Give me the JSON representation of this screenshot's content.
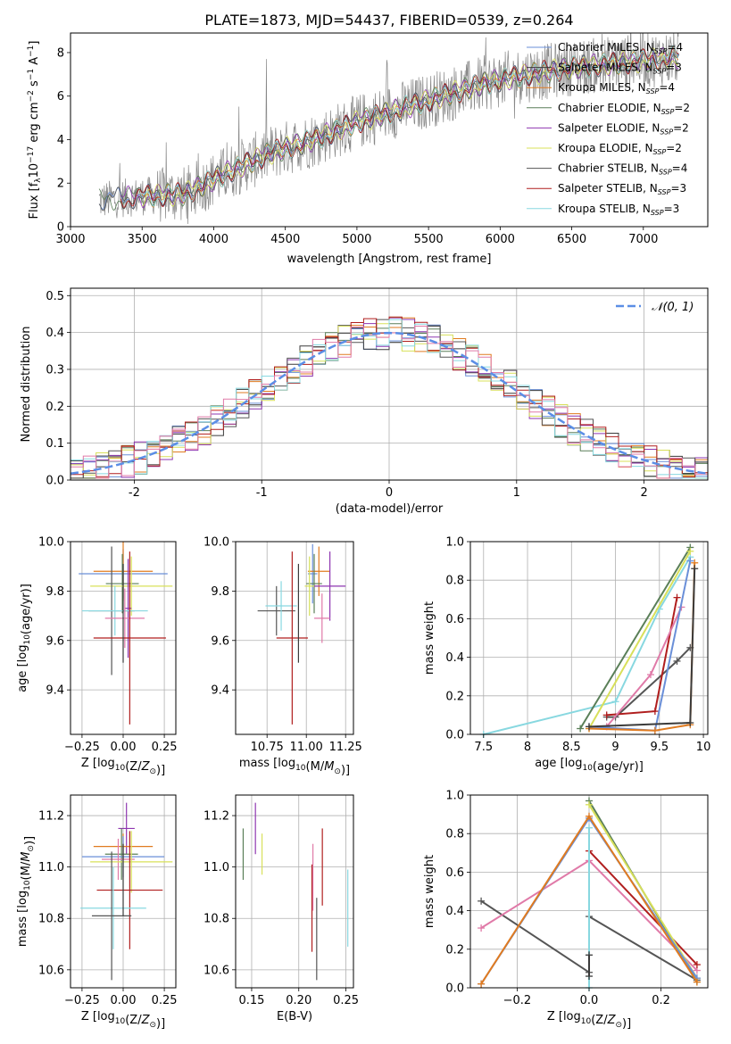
{
  "colors": {
    "Chabrier MILES": "#6a8fd8",
    "Salpeter MILES": "#3b3b3b",
    "Kroupa MILES": "#e07b20",
    "Chabrier ELODIE": "#5a7f58",
    "Salpeter ELODIE": "#8e36b0",
    "Kroupa ELODIE": "#d8e05a",
    "Chabrier STELIB": "#555555",
    "Salpeter STELIB": "#b01e1e",
    "Kroupa STELIB": "#88d8e0",
    "extra": "#e07aa8",
    "normal": "#5b8ee6",
    "grid": "#b0b0b0"
  },
  "chart_data": [
    {
      "id": "spectrum",
      "type": "line",
      "title": "PLATE=1873, MJD=54437, FIBERID=0539, z=0.264",
      "xlabel": "wavelength [Angstrom, rest frame]",
      "ylabel": "Flux [f_λ 10^-17 erg cm^-2 s^-1 A^-1]",
      "xlim": [
        3000,
        7450
      ],
      "ylim": [
        0,
        8.9
      ],
      "xticks": [
        3000,
        3500,
        4000,
        4500,
        5000,
        5500,
        6000,
        6500,
        7000
      ],
      "yticks": [
        0,
        2,
        4,
        6,
        8
      ],
      "grid": false,
      "legend_position": "top-right",
      "legend": [
        {
          "key": "Chabrier MILES",
          "label": "Chabrier MILES, N",
          "sub": "SSP",
          "eq": "=4"
        },
        {
          "key": "Salpeter MILES",
          "label": "Salpeter MILES, N",
          "sub": "SSP",
          "eq": "=3"
        },
        {
          "key": "Kroupa MILES",
          "label": "Kroupa MILES, N",
          "sub": "SSP",
          "eq": "=4"
        },
        {
          "key": "Chabrier ELODIE",
          "label": "Chabrier ELODIE, N",
          "sub": "SSP",
          "eq": "=2"
        },
        {
          "key": "Salpeter ELODIE",
          "label": "Salpeter ELODIE, N",
          "sub": "SSP",
          "eq": "=2"
        },
        {
          "key": "Kroupa ELODIE",
          "label": "Kroupa ELODIE, N",
          "sub": "SSP",
          "eq": "=2"
        },
        {
          "key": "Chabrier STELIB",
          "label": "Chabrier STELIB, N",
          "sub": "SSP",
          "eq": "=4"
        },
        {
          "key": "Salpeter STELIB",
          "label": "Salpeter STELIB, N",
          "sub": "SSP",
          "eq": "=3"
        },
        {
          "key": "Kroupa STELIB",
          "label": "Kroupa STELIB, N",
          "sub": "SSP",
          "eq": "=3"
        }
      ],
      "observed_envelope": {
        "x": [
          3200,
          3500,
          3800,
          4100,
          4400,
          4700,
          5000,
          5300,
          5600,
          5900,
          6200,
          6500,
          6800,
          7100,
          7250
        ],
        "y": [
          1.2,
          1.4,
          1.5,
          2.5,
          3.4,
          4.0,
          4.8,
          5.4,
          6.0,
          6.6,
          7.0,
          7.3,
          7.5,
          7.7,
          7.8
        ]
      }
    },
    {
      "id": "residuals",
      "type": "step",
      "xlabel": "(data-model)/error",
      "ylabel": "Normed distribution",
      "xlim": [
        -2.5,
        2.5
      ],
      "ylim": [
        0,
        0.52
      ],
      "xticks": [
        -2,
        -1,
        0,
        1,
        2
      ],
      "yticks": [
        0.0,
        0.1,
        0.2,
        0.3,
        0.4,
        0.5
      ],
      "grid": true,
      "legend": [
        {
          "label": "𝒩(0, 1)",
          "style": "dashed"
        }
      ],
      "legend_position": "top-right",
      "bin_width": 0.1,
      "hist_range": [
        -2.5,
        2.5
      ]
    },
    {
      "id": "age-vs-Z",
      "type": "errorbar",
      "xlabel": "Z [log10(Z/Z⊙)]",
      "ylabel": "age  [log10(age/yr)]",
      "xlim": [
        -0.32,
        0.32
      ],
      "ylim": [
        9.22,
        10.0
      ],
      "xticks": [
        -0.25,
        0.0,
        0.25
      ],
      "xticklabels": [
        "−0.25",
        "0.00",
        "0.25"
      ],
      "yticks": [
        9.4,
        9.6,
        9.8,
        10.0
      ],
      "grid": true,
      "points": [
        {
          "key": "Chabrier MILES",
          "x": 0.0,
          "xerr": 0.27,
          "y": 9.87,
          "yerr": 0.1
        },
        {
          "key": "Kroupa MILES",
          "x": 0.0,
          "xerr": 0.18,
          "y": 9.88,
          "yerr": 0.12
        },
        {
          "key": "Chabrier ELODIE",
          "x": -0.005,
          "xerr": 0.1,
          "y": 9.83,
          "yerr": 0.12
        },
        {
          "key": "Kroupa ELODIE",
          "x": 0.05,
          "xerr": 0.25,
          "y": 9.82,
          "yerr": 0.12
        },
        {
          "key": "Salpeter ELODIE",
          "x": 0.03,
          "xerr": 0.02,
          "y": 9.73,
          "yerr": 0.2
        },
        {
          "key": "Chabrier STELIB",
          "x": -0.07,
          "xerr": 0.14,
          "y": 9.72,
          "yerr": 0.26
        },
        {
          "key": "Kroupa STELIB",
          "x": -0.05,
          "xerr": 0.2,
          "y": 9.72,
          "yerr": 0.1
        },
        {
          "key": "extra",
          "x": 0.01,
          "xerr": 0.12,
          "y": 9.69,
          "yerr": 0.12
        },
        {
          "key": "Salpeter STELIB",
          "x": 0.04,
          "xerr": 0.22,
          "y": 9.61,
          "yerr": 0.35
        },
        {
          "key": "Salpeter MILES",
          "x": 0.0,
          "xerr": 0.0,
          "y": 9.71,
          "yerr": 0.2
        }
      ]
    },
    {
      "id": "age-vs-mass",
      "type": "errorbar",
      "xlabel": "mass [log10(M/M⊙)]",
      "ylabel": "",
      "xlim": [
        10.55,
        11.3
      ],
      "ylim": [
        9.22,
        10.0
      ],
      "xticks": [
        10.75,
        11.0,
        11.25
      ],
      "xticklabels": [
        "10.75",
        "11.00",
        "11.25"
      ],
      "yticks": [
        9.4,
        9.6,
        9.8,
        10.0
      ],
      "grid": true,
      "points": [
        {
          "key": "Chabrier MILES",
          "x": 11.04,
          "xerr": 0.03,
          "y": 9.87,
          "yerr": 0.12
        },
        {
          "key": "Kroupa MILES",
          "x": 11.08,
          "xerr": 0.07,
          "y": 9.88,
          "yerr": 0.1
        },
        {
          "key": "Chabrier ELODIE",
          "x": 11.05,
          "xerr": 0.05,
          "y": 9.83,
          "yerr": 0.12
        },
        {
          "key": "Salpeter ELODIE",
          "x": 11.15,
          "xerr": 0.1,
          "y": 9.82,
          "yerr": 0.14
        },
        {
          "key": "Kroupa ELODIE",
          "x": 11.02,
          "xerr": 0.03,
          "y": 9.82,
          "yerr": 0.12
        },
        {
          "key": "Chabrier STELIB",
          "x": 10.81,
          "xerr": 0.12,
          "y": 9.72,
          "yerr": 0.1
        },
        {
          "key": "Kroupa STELIB",
          "x": 10.84,
          "xerr": 0.1,
          "y": 9.74,
          "yerr": 0.1
        },
        {
          "key": "extra",
          "x": 11.1,
          "xerr": 0.05,
          "y": 9.69,
          "yerr": 0.1
        },
        {
          "key": "Salpeter STELIB",
          "x": 10.91,
          "xerr": 0.1,
          "y": 9.61,
          "yerr": 0.35
        },
        {
          "key": "Salpeter MILES",
          "x": 10.95,
          "xerr": 0.0,
          "y": 9.71,
          "yerr": 0.2
        }
      ]
    },
    {
      "id": "massweight-vs-age",
      "type": "line",
      "xlabel": "age  [log10(age/yr)]",
      "ylabel": "mass weight",
      "xlim": [
        7.35,
        10.05
      ],
      "ylim": [
        0,
        1.0
      ],
      "xticks": [
        7.5,
        8.0,
        8.5,
        9.0,
        9.5,
        10.0
      ],
      "yticks": [
        0.0,
        0.2,
        0.4,
        0.6,
        0.8,
        1.0
      ],
      "grid": true,
      "series": [
        {
          "key": "Kroupa STELIB",
          "x": [
            7.5,
            9.0,
            9.5,
            9.85
          ],
          "y": [
            0.0,
            0.17,
            0.65,
            0.92
          ]
        },
        {
          "key": "Chabrier ELODIE",
          "x": [
            8.6,
            9.85
          ],
          "y": [
            0.03,
            0.97
          ]
        },
        {
          "key": "Kroupa ELODIE",
          "x": [
            8.7,
            9.85
          ],
          "y": [
            0.03,
            0.95
          ]
        },
        {
          "key": "Chabrier STELIB",
          "x": [
            8.9,
            9.0,
            9.7,
            9.85
          ],
          "y": [
            0.09,
            0.09,
            0.38,
            0.45
          ]
        },
        {
          "key": "Salpeter STELIB",
          "x": [
            8.9,
            9.45,
            9.7
          ],
          "y": [
            0.1,
            0.12,
            0.71
          ]
        },
        {
          "key": "extra",
          "x": [
            8.9,
            9.4,
            9.75
          ],
          "y": [
            0.04,
            0.31,
            0.66
          ]
        },
        {
          "key": "Chabrier MILES",
          "x": [
            8.7,
            9.45,
            9.85
          ],
          "y": [
            0.04,
            0.02,
            0.9
          ]
        },
        {
          "key": "Kroupa MILES",
          "x": [
            8.7,
            9.45,
            9.85,
            9.9
          ],
          "y": [
            0.03,
            0.02,
            0.05,
            0.89
          ]
        },
        {
          "key": "Salpeter MILES",
          "x": [
            8.7,
            9.85,
            9.9
          ],
          "y": [
            0.04,
            0.06,
            0.86
          ]
        }
      ]
    },
    {
      "id": "mass-vs-Z",
      "type": "errorbar",
      "xlabel": "Z [log10(Z/Z⊙)]",
      "ylabel": "mass [log10(M/M⊙)]",
      "xlim": [
        -0.32,
        0.32
      ],
      "ylim": [
        10.53,
        11.28
      ],
      "xticks": [
        -0.25,
        0.0,
        0.25
      ],
      "xticklabels": [
        "−0.25",
        "0.00",
        "0.25"
      ],
      "yticks": [
        10.6,
        10.8,
        11.0,
        11.2
      ],
      "grid": true,
      "points": [
        {
          "key": "Salpeter ELODIE",
          "x": 0.02,
          "xerr": 0.05,
          "y": 11.15,
          "yerr": 0.1
        },
        {
          "key": "Kroupa MILES",
          "x": 0.0,
          "xerr": 0.18,
          "y": 11.08,
          "yerr": 0.05
        },
        {
          "key": "Chabrier ELODIE",
          "x": -0.01,
          "xerr": 0.1,
          "y": 11.05,
          "yerr": 0.1
        },
        {
          "key": "Chabrier MILES",
          "x": 0.0,
          "xerr": 0.25,
          "y": 11.04,
          "yerr": 0.08
        },
        {
          "key": "extra",
          "x": -0.03,
          "xerr": 0.1,
          "y": 11.03,
          "yerr": 0.08
        },
        {
          "key": "Kroupa ELODIE",
          "x": 0.05,
          "xerr": 0.25,
          "y": 11.02,
          "yerr": 0.12
        },
        {
          "key": "Salpeter STELIB",
          "x": 0.04,
          "xerr": 0.2,
          "y": 10.91,
          "yerr": 0.23
        },
        {
          "key": "Kroupa STELIB",
          "x": -0.06,
          "xerr": 0.2,
          "y": 10.84,
          "yerr": 0.16
        },
        {
          "key": "Chabrier STELIB",
          "x": -0.07,
          "xerr": 0.12,
          "y": 10.81,
          "yerr": 0.25
        },
        {
          "key": "Salpeter MILES",
          "x": 0.0,
          "xerr": 0.0,
          "y": 10.95,
          "yerr": 0.14
        }
      ]
    },
    {
      "id": "mass-vs-ebv",
      "type": "errorbar",
      "xlabel": "E(B-V)",
      "ylabel": "",
      "xlim": [
        0.133,
        0.258
      ],
      "ylim": [
        10.53,
        11.28
      ],
      "xticks": [
        0.15,
        0.2,
        0.25
      ],
      "xticklabels": [
        "0.15",
        "0.20",
        "0.25"
      ],
      "yticks": [
        10.6,
        10.8,
        11.0,
        11.2
      ],
      "grid": true,
      "points": [
        {
          "key": "Chabrier ELODIE",
          "x": 0.141,
          "xerr": 0.0,
          "y": 11.05,
          "yerr": 0.1
        },
        {
          "key": "Salpeter ELODIE",
          "x": 0.154,
          "xerr": 0.0,
          "y": 11.15,
          "yerr": 0.1
        },
        {
          "key": "Kroupa ELODIE",
          "x": 0.161,
          "xerr": 0.0,
          "y": 11.05,
          "yerr": 0.08
        },
        {
          "key": "Salpeter STELIB",
          "x": 0.214,
          "xerr": 0.0,
          "y": 10.84,
          "yerr": 0.17
        },
        {
          "key": "extra",
          "x": 0.215,
          "xerr": 0.0,
          "y": 10.96,
          "yerr": 0.13
        },
        {
          "key": "Chabrier STELIB",
          "x": 0.219,
          "xerr": 0.0,
          "y": 10.72,
          "yerr": 0.16
        },
        {
          "key": "Salpeter STELIB",
          "x": 0.225,
          "xerr": 0.0,
          "y": 11.0,
          "yerr": 0.15
        },
        {
          "key": "Kroupa STELIB",
          "x": 0.252,
          "xerr": 0.0,
          "y": 10.84,
          "yerr": 0.15
        }
      ]
    },
    {
      "id": "massweight-vs-Z",
      "type": "line",
      "xlabel": "Z [log10(Z/Z⊙)]",
      "ylabel": "mass weight",
      "xlim": [
        -0.33,
        0.33
      ],
      "ylim": [
        0,
        1.0
      ],
      "xticks": [
        -0.2,
        0.0,
        0.2
      ],
      "xticklabels": [
        "−0.2",
        "0.0",
        "0.2"
      ],
      "yticks": [
        0.0,
        0.2,
        0.4,
        0.6,
        0.8,
        1.0
      ],
      "grid": true,
      "series": [
        {
          "key": "Chabrier STELIB",
          "x": [
            -0.3,
            0.0,
            0.0,
            0.3
          ],
          "y": [
            0.45,
            0.08,
            0.37,
            0.04
          ]
        },
        {
          "key": "extra",
          "x": [
            -0.3,
            0.0,
            0.3
          ],
          "y": [
            0.31,
            0.66,
            0.09
          ]
        },
        {
          "key": "Salpeter STELIB",
          "x": [
            0.0,
            0.3
          ],
          "y": [
            0.71,
            0.12
          ]
        },
        {
          "key": "Chabrier ELODIE",
          "x": [
            0.0,
            0.3
          ],
          "y": [
            0.97,
            0.03
          ]
        },
        {
          "key": "Kroupa ELODIE",
          "x": [
            0.0,
            0.3
          ],
          "y": [
            0.95,
            0.05
          ]
        },
        {
          "key": "Kroupa STELIB",
          "x": [
            0.0,
            0.0
          ],
          "y": [
            0.0,
            0.83
          ]
        },
        {
          "key": "Chabrier MILES",
          "x": [
            -0.3,
            0.0,
            0.3
          ],
          "y": [
            0.02,
            0.88,
            0.05
          ]
        },
        {
          "key": "Kroupa MILES",
          "x": [
            -0.3,
            0.0,
            0.3
          ],
          "y": [
            0.02,
            0.89,
            0.03
          ]
        },
        {
          "key": "Salpeter MILES",
          "x": [
            0.0,
            0.0
          ],
          "y": [
            0.06,
            0.17
          ]
        }
      ]
    }
  ]
}
